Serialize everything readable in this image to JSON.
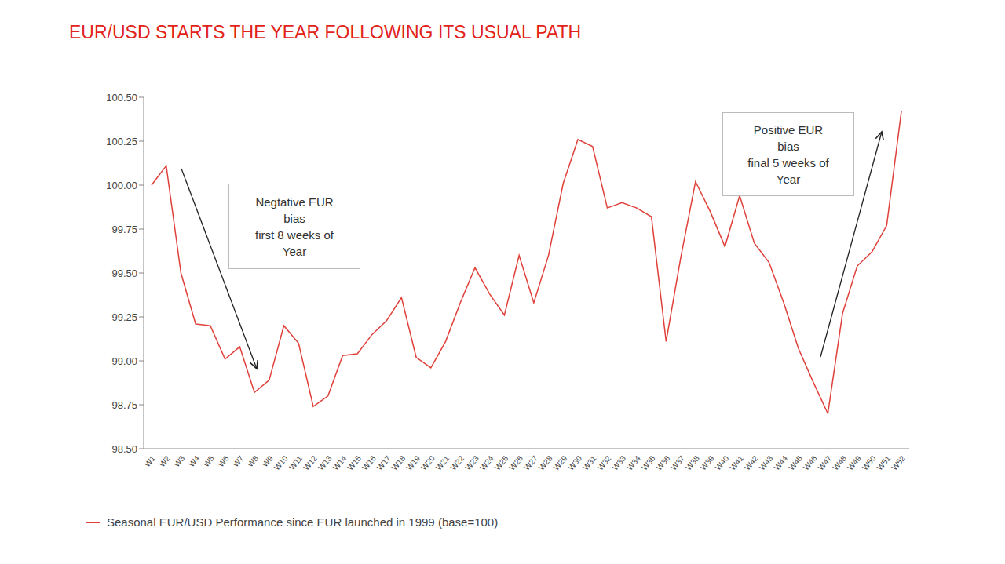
{
  "chart_data": {
    "type": "line",
    "title": "EUR/USD STARTS THE YEAR FOLLOWING ITS USUAL PATH",
    "categories": [
      "W1",
      "W2",
      "W3",
      "W4",
      "W5",
      "W6",
      "W7",
      "W8",
      "W9",
      "W10",
      "W11",
      "W12",
      "W13",
      "W14",
      "W15",
      "W16",
      "W17",
      "W18",
      "W19",
      "W20",
      "W21",
      "W22",
      "W23",
      "W24",
      "W25",
      "W26",
      "W27",
      "W28",
      "W29",
      "W30",
      "W31",
      "W32",
      "W33",
      "W34",
      "W35",
      "W36",
      "W37",
      "W38",
      "W39",
      "W40",
      "W41",
      "W42",
      "W43",
      "W44",
      "W45",
      "W46",
      "W47",
      "W48",
      "W49",
      "W50",
      "W51",
      "W52"
    ],
    "series": [
      {
        "name": "Seasonal EUR/USD Performance since EUR launched in 1999 (base=100)",
        "color": "#e0403a",
        "values": [
          100.0,
          100.11,
          99.5,
          99.21,
          99.2,
          99.01,
          99.08,
          98.82,
          98.89,
          99.2,
          99.1,
          98.74,
          98.8,
          99.03,
          99.04,
          99.15,
          99.23,
          99.36,
          99.02,
          98.96,
          99.11,
          99.33,
          99.53,
          99.38,
          99.26,
          99.6,
          99.33,
          99.6,
          100.01,
          100.26,
          100.22,
          99.87,
          99.9,
          99.87,
          99.82,
          99.11,
          99.59,
          100.02,
          99.85,
          99.65,
          99.94,
          99.67,
          99.56,
          99.33,
          99.07,
          98.88,
          98.7,
          99.27,
          99.54,
          99.62,
          99.77,
          100.42
        ]
      }
    ],
    "ylim": [
      98.5,
      100.5
    ],
    "yticks": [
      {
        "value": 98.5,
        "label": "98.50"
      },
      98.75,
      {
        "value": 99,
        "label": "99.00"
      },
      99.25,
      {
        "value": 99.5,
        "label": "99.50"
      },
      99.75,
      {
        "value": 100,
        "label": "100.00"
      },
      100.25,
      {
        "value": 100.5,
        "label": "100.50"
      }
    ],
    "grid": false,
    "legend": "bottom",
    "annotations": [
      {
        "text": "Negtative EUR\nbias\nfirst 8 weeks of\nYear"
      },
      {
        "text": "Positive EUR\nbias\nfinal 5 weeks of\nYear"
      }
    ]
  }
}
